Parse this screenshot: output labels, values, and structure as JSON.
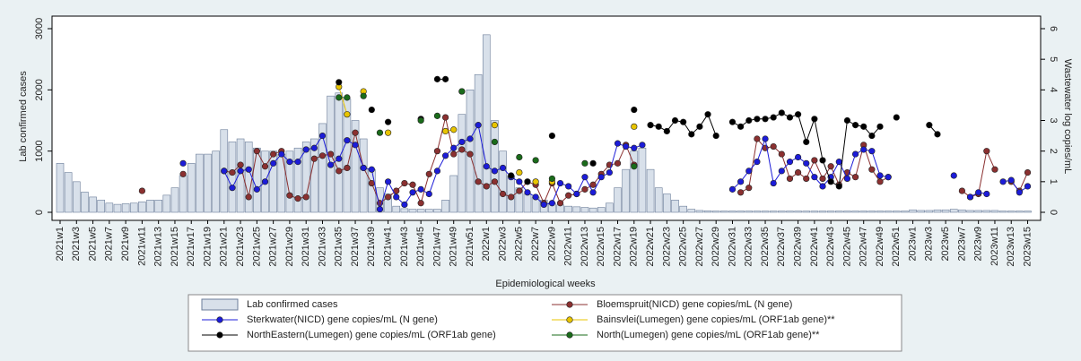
{
  "chart_data": {
    "type": "combo",
    "x_label": "Epidemiological weeks",
    "y_label": "Lab confirmed cases",
    "y2_label": "Wastewater log copies/mL",
    "categories": [
      "2021w1",
      null,
      "2021w3",
      null,
      "2021w5",
      null,
      "2021w7",
      null,
      "2021w9",
      null,
      "2021w11",
      null,
      "2021w13",
      null,
      "2021w15",
      null,
      "2021w17",
      null,
      "2021w19",
      null,
      "2021w21",
      null,
      "2021w23",
      null,
      "2021w25",
      null,
      "2021w27",
      null,
      "2021w29",
      null,
      "2021w31",
      null,
      "2021w33",
      null,
      "2021w35",
      null,
      "2021w37",
      null,
      "2021w39",
      null,
      "2021w41",
      null,
      "2021w43",
      null,
      "2021w45",
      null,
      "2021w47",
      null,
      "2021w49",
      null,
      "2021w51",
      null,
      "2022w1",
      null,
      "2022w3",
      null,
      "2022w5",
      null,
      "2022w7",
      null,
      "2022w9",
      null,
      "2022w11",
      null,
      "2022w13",
      null,
      "2022w15",
      null,
      "2022w17",
      null,
      "2022w19",
      null,
      "2022w21",
      null,
      "2022w23",
      null,
      "2022w25",
      null,
      "2022w27",
      null,
      "2022w29",
      null,
      "2022w31",
      null,
      "2022w33",
      null,
      "2022w35",
      null,
      "2022w37",
      null,
      "2022w39",
      null,
      "2022w41",
      null,
      "2022w43",
      null,
      "2022w45",
      null,
      "2022w47",
      null,
      "2022w49",
      null,
      "2022w51",
      null,
      "2023w1",
      null,
      "2023w3",
      null,
      "2023w5",
      null,
      "2023w7",
      null,
      "2023w9",
      null,
      "2023w11",
      null,
      "2023w13",
      null,
      "2023w15"
    ],
    "ylim": [
      0,
      3000
    ],
    "yticks": [
      0,
      1000,
      2000,
      3000
    ],
    "y2lim": [
      0,
      6
    ],
    "y2ticks": [
      0,
      1,
      2,
      3,
      4,
      5,
      6
    ],
    "grid": false,
    "series": [
      {
        "name": "Lab confirmed cases",
        "type": "bar",
        "color": "#d8e0ea",
        "values": [
          800,
          650,
          500,
          330,
          250,
          200,
          150,
          130,
          140,
          150,
          170,
          200,
          200,
          280,
          400,
          600,
          800,
          950,
          950,
          1000,
          1350,
          1150,
          1200,
          1150,
          1050,
          1000,
          1000,
          950,
          1000,
          1050,
          1150,
          1200,
          1450,
          1900,
          1950,
          1850,
          1500,
          1200,
          700,
          400,
          300,
          100,
          60,
          50,
          50,
          50,
          50,
          200,
          600,
          1600,
          2000,
          2250,
          2900,
          1500,
          1000,
          600,
          400,
          300,
          250,
          200,
          150,
          120,
          100,
          90,
          80,
          70,
          80,
          150,
          400,
          700,
          1000,
          1050,
          700,
          400,
          300,
          200,
          100,
          50,
          30,
          25,
          20,
          20,
          20,
          20,
          20,
          20,
          20,
          20,
          20,
          20,
          20,
          20,
          20,
          20,
          20,
          20,
          20,
          20,
          20,
          20,
          20,
          20,
          20,
          20,
          40,
          30,
          30,
          40,
          40,
          50,
          40,
          30,
          30,
          30,
          30,
          20,
          20,
          20,
          20
        ]
      },
      {
        "name": "Bloemspruit(NICD) gene copies/mL (N gene)",
        "type": "line",
        "axis": "y2",
        "color": "#8b3030",
        "values": [
          null,
          null,
          null,
          null,
          null,
          null,
          null,
          null,
          null,
          null,
          0.7,
          null,
          null,
          null,
          null,
          1.25,
          null,
          null,
          null,
          null,
          1.35,
          1.3,
          1.55,
          0.5,
          2.0,
          1.5,
          1.9,
          2.0,
          0.55,
          0.45,
          0.5,
          1.75,
          1.85,
          1.9,
          1.35,
          1.45,
          2.6,
          1.45,
          0.95,
          0.3,
          0.5,
          0.7,
          0.95,
          0.9,
          0.3,
          1.25,
          2.0,
          3.1,
          1.9,
          2.05,
          1.9,
          1.0,
          0.85,
          1.0,
          0.6,
          0.5,
          0.7,
          1.0,
          0.9,
          0.3,
          0.95,
          0.3,
          0.55,
          0.6,
          0.75,
          0.9,
          1.25,
          1.55,
          1.6,
          2.2,
          1.55,
          null,
          null,
          null,
          null,
          null,
          null,
          null,
          null,
          null,
          null,
          null,
          null,
          0.65,
          0.8,
          2.4,
          2.1,
          2.15,
          1.9,
          1.1,
          1.3,
          1.1,
          1.7,
          1.1,
          1.5,
          0.9,
          1.3,
          1.15,
          2.2,
          1.4,
          1.0,
          1.15,
          null,
          null,
          null,
          null,
          null,
          null,
          null,
          null,
          0.7,
          0.5,
          0.6,
          2.0,
          1.4,
          null,
          1.0,
          0.7,
          1.3
        ]
      },
      {
        "name": "Sterkwater(NICD) gene copies/mL (N gene)",
        "type": "line",
        "axis": "y2",
        "color": "#1c1cd8",
        "values": [
          null,
          null,
          null,
          null,
          null,
          null,
          null,
          null,
          null,
          null,
          null,
          null,
          null,
          null,
          null,
          1.6,
          null,
          null,
          null,
          null,
          1.35,
          0.8,
          1.35,
          1.4,
          0.75,
          1.0,
          1.6,
          1.9,
          1.65,
          1.65,
          2.05,
          2.1,
          2.5,
          1.55,
          1.75,
          2.35,
          2.2,
          1.45,
          1.4,
          0.1,
          1.0,
          0.5,
          0.25,
          0.65,
          0.75,
          0.6,
          1.35,
          1.85,
          2.1,
          2.3,
          2.4,
          2.85,
          1.5,
          1.35,
          1.45,
          1.15,
          1.0,
          0.65,
          0.5,
          0.25,
          0.3,
          0.95,
          0.85,
          0.6,
          1.15,
          0.65,
          1.15,
          1.3,
          2.25,
          2.15,
          2.1,
          2.2,
          null,
          null,
          null,
          null,
          null,
          null,
          null,
          null,
          null,
          null,
          0.75,
          1.0,
          1.35,
          1.65,
          2.4,
          0.95,
          1.35,
          1.65,
          1.8,
          1.6,
          1.15,
          0.85,
          1.15,
          1.65,
          1.1,
          1.9,
          2.05,
          2.0,
          1.2,
          1.15,
          null,
          null,
          null,
          null,
          null,
          null,
          null,
          1.2,
          null,
          0.5,
          0.65,
          0.6,
          null,
          1.0,
          1.05,
          0.65,
          0.85
        ]
      },
      {
        "name": "Bainsvlei(Lumegen) gene copies/mL (ORF1ab gene)**",
        "type": "line",
        "axis": "y2",
        "color": "#e8c400",
        "values": [
          null,
          null,
          null,
          null,
          null,
          null,
          null,
          null,
          null,
          null,
          null,
          null,
          null,
          null,
          null,
          null,
          null,
          null,
          null,
          null,
          null,
          null,
          null,
          null,
          null,
          null,
          null,
          null,
          null,
          null,
          null,
          null,
          null,
          null,
          4.1,
          3.2,
          null,
          3.95,
          null,
          null,
          2.6,
          null,
          null,
          null,
          null,
          null,
          null,
          2.65,
          2.7,
          null,
          null,
          null,
          null,
          2.85,
          null,
          null,
          1.3,
          null,
          1.0,
          null,
          1.0,
          null,
          null,
          null,
          null,
          null,
          null,
          null,
          null,
          null,
          2.8,
          null,
          null,
          null,
          null,
          null,
          null,
          null,
          null,
          null,
          null,
          null,
          null,
          null,
          null,
          null,
          null,
          null,
          null,
          null,
          null,
          null,
          null,
          null,
          null,
          null,
          null,
          null,
          null,
          null,
          null,
          null,
          null,
          null,
          null,
          null,
          null,
          null,
          null,
          null,
          null,
          null,
          null,
          null,
          null,
          null,
          null,
          null,
          null
        ]
      },
      {
        "name": "NorthEastern(Lumegen) gene copies/mL (ORF1ab gene)",
        "type": "line",
        "axis": "y2",
        "color": "#000000",
        "values": [
          null,
          null,
          null,
          null,
          null,
          null,
          null,
          null,
          null,
          null,
          null,
          null,
          null,
          null,
          null,
          null,
          null,
          null,
          null,
          null,
          null,
          null,
          null,
          null,
          null,
          null,
          null,
          null,
          null,
          null,
          null,
          null,
          null,
          null,
          4.25,
          null,
          null,
          null,
          3.35,
          null,
          2.95,
          null,
          null,
          null,
          3.05,
          null,
          4.35,
          4.35,
          null,
          3.95,
          null,
          null,
          null,
          null,
          null,
          1.2,
          null,
          1.0,
          null,
          null,
          2.5,
          null,
          null,
          null,
          null,
          1.6,
          null,
          null,
          null,
          null,
          3.35,
          null,
          2.85,
          2.8,
          2.65,
          3.0,
          2.95,
          2.55,
          2.8,
          3.2,
          2.5,
          null,
          2.95,
          2.8,
          3.0,
          3.05,
          3.05,
          3.1,
          3.25,
          3.1,
          3.2,
          2.3,
          3.05,
          1.7,
          1.0,
          0.85,
          3.0,
          2.85,
          2.8,
          2.5,
          2.8,
          null,
          3.1,
          null,
          null,
          null,
          2.85,
          2.55,
          null,
          null,
          null,
          null,
          null,
          null,
          null,
          null,
          null,
          null,
          null
        ]
      },
      {
        "name": "North(Lumegen) gene copies/mL (ORF1ab gene)**",
        "type": "line",
        "axis": "y2",
        "color": "#1a6b1a",
        "values": [
          null,
          null,
          null,
          null,
          null,
          null,
          null,
          null,
          null,
          null,
          null,
          null,
          null,
          null,
          null,
          null,
          null,
          null,
          null,
          null,
          null,
          null,
          null,
          null,
          null,
          null,
          null,
          null,
          null,
          null,
          null,
          null,
          null,
          null,
          3.75,
          3.75,
          null,
          3.8,
          null,
          2.6,
          null,
          null,
          null,
          null,
          3.0,
          null,
          3.15,
          null,
          null,
          3.95,
          null,
          null,
          null,
          2.3,
          null,
          null,
          1.8,
          null,
          1.7,
          null,
          1.1,
          null,
          null,
          null,
          1.6,
          null,
          null,
          null,
          null,
          null,
          1.5,
          null,
          null,
          null,
          null,
          null,
          null,
          null,
          null,
          null,
          null,
          null,
          null,
          null,
          null,
          null,
          null,
          null,
          null,
          null,
          null,
          null,
          null,
          null,
          null,
          null,
          null,
          null,
          null,
          null,
          null,
          null,
          null,
          null,
          null,
          null,
          null,
          null,
          null,
          null,
          null,
          null,
          null,
          null,
          null,
          null,
          null,
          null,
          null
        ]
      }
    ]
  }
}
